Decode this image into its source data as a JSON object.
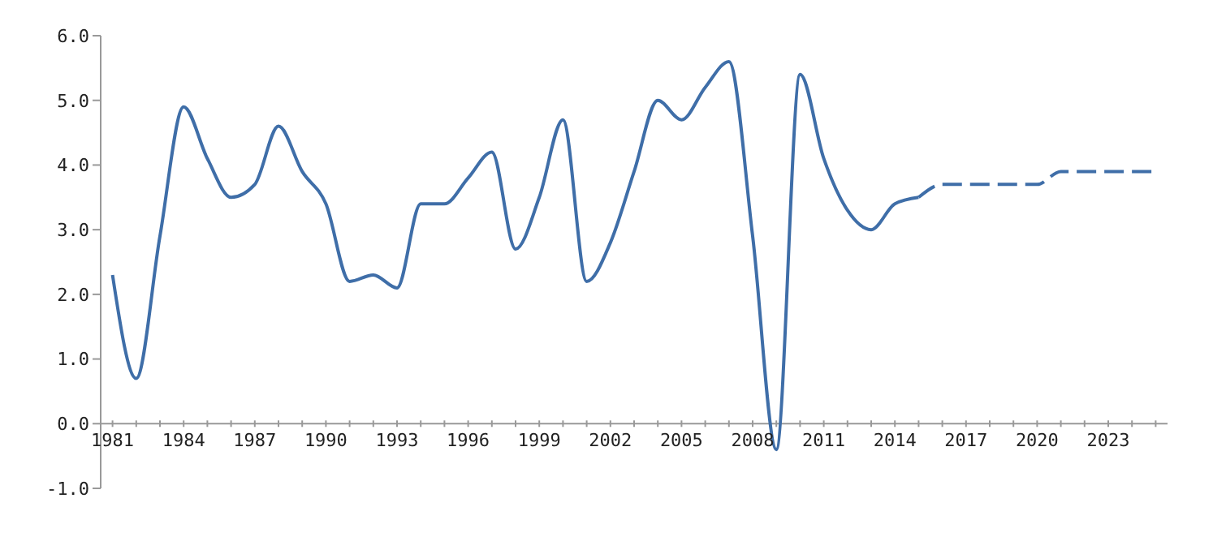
{
  "chart_data": {
    "type": "line",
    "xlim": [
      1980.5,
      2025.5
    ],
    "xticks": [
      {
        "value": 1981,
        "label": "1981"
      },
      {
        "value": 1982,
        "label": null
      },
      {
        "value": 1983,
        "label": null
      },
      {
        "value": 1984,
        "label": "1984"
      },
      {
        "value": 1985,
        "label": null
      },
      {
        "value": 1986,
        "label": null
      },
      {
        "value": 1987,
        "label": "1987"
      },
      {
        "value": 1988,
        "label": null
      },
      {
        "value": 1989,
        "label": null
      },
      {
        "value": 1990,
        "label": "1990"
      },
      {
        "value": 1991,
        "label": null
      },
      {
        "value": 1992,
        "label": null
      },
      {
        "value": 1993,
        "label": "1993"
      },
      {
        "value": 1994,
        "label": null
      },
      {
        "value": 1995,
        "label": null
      },
      {
        "value": 1996,
        "label": "1996"
      },
      {
        "value": 1997,
        "label": null
      },
      {
        "value": 1998,
        "label": null
      },
      {
        "value": 1999,
        "label": "1999"
      },
      {
        "value": 2000,
        "label": null
      },
      {
        "value": 2001,
        "label": null
      },
      {
        "value": 2002,
        "label": "2002"
      },
      {
        "value": 2003,
        "label": null
      },
      {
        "value": 2004,
        "label": null
      },
      {
        "value": 2005,
        "label": "2005"
      },
      {
        "value": 2006,
        "label": null
      },
      {
        "value": 2007,
        "label": null
      },
      {
        "value": 2008,
        "label": "2008"
      },
      {
        "value": 2009,
        "label": null
      },
      {
        "value": 2010,
        "label": null
      },
      {
        "value": 2011,
        "label": "2011"
      },
      {
        "value": 2012,
        "label": null
      },
      {
        "value": 2013,
        "label": null
      },
      {
        "value": 2014,
        "label": "2014"
      },
      {
        "value": 2015,
        "label": null
      },
      {
        "value": 2016,
        "label": null
      },
      {
        "value": 2017,
        "label": "2017"
      },
      {
        "value": 2018,
        "label": null
      },
      {
        "value": 2019,
        "label": null
      },
      {
        "value": 2020,
        "label": "2020"
      },
      {
        "value": 2021,
        "label": null
      },
      {
        "value": 2022,
        "label": null
      },
      {
        "value": 2023,
        "label": "2023"
      },
      {
        "value": 2024,
        "label": null
      },
      {
        "value": 2025,
        "label": null
      }
    ],
    "ylim": [
      -1,
      6
    ],
    "yticks": [
      {
        "value": -1,
        "label": "-1.0"
      },
      {
        "value": 0,
        "label": "0.0"
      },
      {
        "value": 1,
        "label": "1.0"
      },
      {
        "value": 2,
        "label": "2.0"
      },
      {
        "value": 3,
        "label": "3.0"
      },
      {
        "value": 4,
        "label": "4.0"
      },
      {
        "value": 5,
        "label": "5.0"
      },
      {
        "value": 6,
        "label": "6.0"
      }
    ],
    "grid": false,
    "legend": false,
    "marker": "none",
    "series": [
      {
        "color": "#3f6ea8",
        "line_style": "solid",
        "x": [
          1981,
          1982,
          1983,
          1984,
          1985,
          1986,
          1987,
          1988,
          1989,
          1990,
          1991,
          1992,
          1993,
          1994,
          1995,
          1996,
          1997,
          1998,
          1999,
          2000,
          2001,
          2002,
          2003,
          2004,
          2005,
          2006,
          2007,
          2008,
          2009,
          2010,
          2011,
          2012,
          2013,
          2014,
          2015
        ],
        "values": [
          2.3,
          0.7,
          2.9,
          4.9,
          4.1,
          3.5,
          3.7,
          4.6,
          3.9,
          3.4,
          2.2,
          2.3,
          2.1,
          3.4,
          3.4,
          3.8,
          4.2,
          2.7,
          3.5,
          4.7,
          2.2,
          2.8,
          3.9,
          5.0,
          4.7,
          5.2,
          5.6,
          2.9,
          -0.4,
          5.4,
          4.1,
          3.3,
          3.0,
          3.4,
          3.5
        ]
      },
      {
        "color": "#3f6ea8",
        "line_style": "dashed",
        "x": [
          2015,
          2016,
          2017,
          2018,
          2019,
          2020,
          2021,
          2022,
          2023,
          2024,
          2025
        ],
        "values": [
          3.5,
          3.7,
          3.7,
          3.7,
          3.7,
          3.7,
          3.9,
          3.9,
          3.9,
          3.9,
          3.9
        ]
      }
    ]
  }
}
